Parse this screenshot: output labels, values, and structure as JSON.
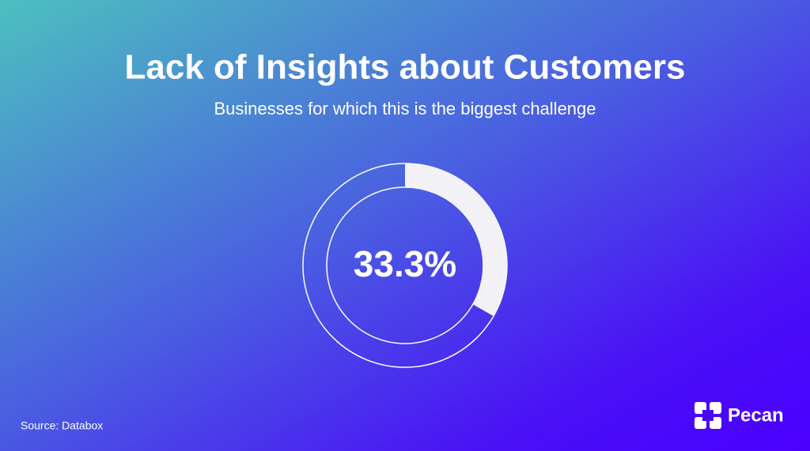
{
  "chart_data": {
    "type": "donut",
    "title": "Lack of Insights about Customers",
    "subtitle": "Businesses for which this is the biggest challenge",
    "values": [
      33.3
    ],
    "value_labels": [
      "33.3%"
    ],
    "color": "#f2f2f6"
  },
  "footer": {
    "source": "Source: Databox",
    "brand": "Pecan"
  }
}
